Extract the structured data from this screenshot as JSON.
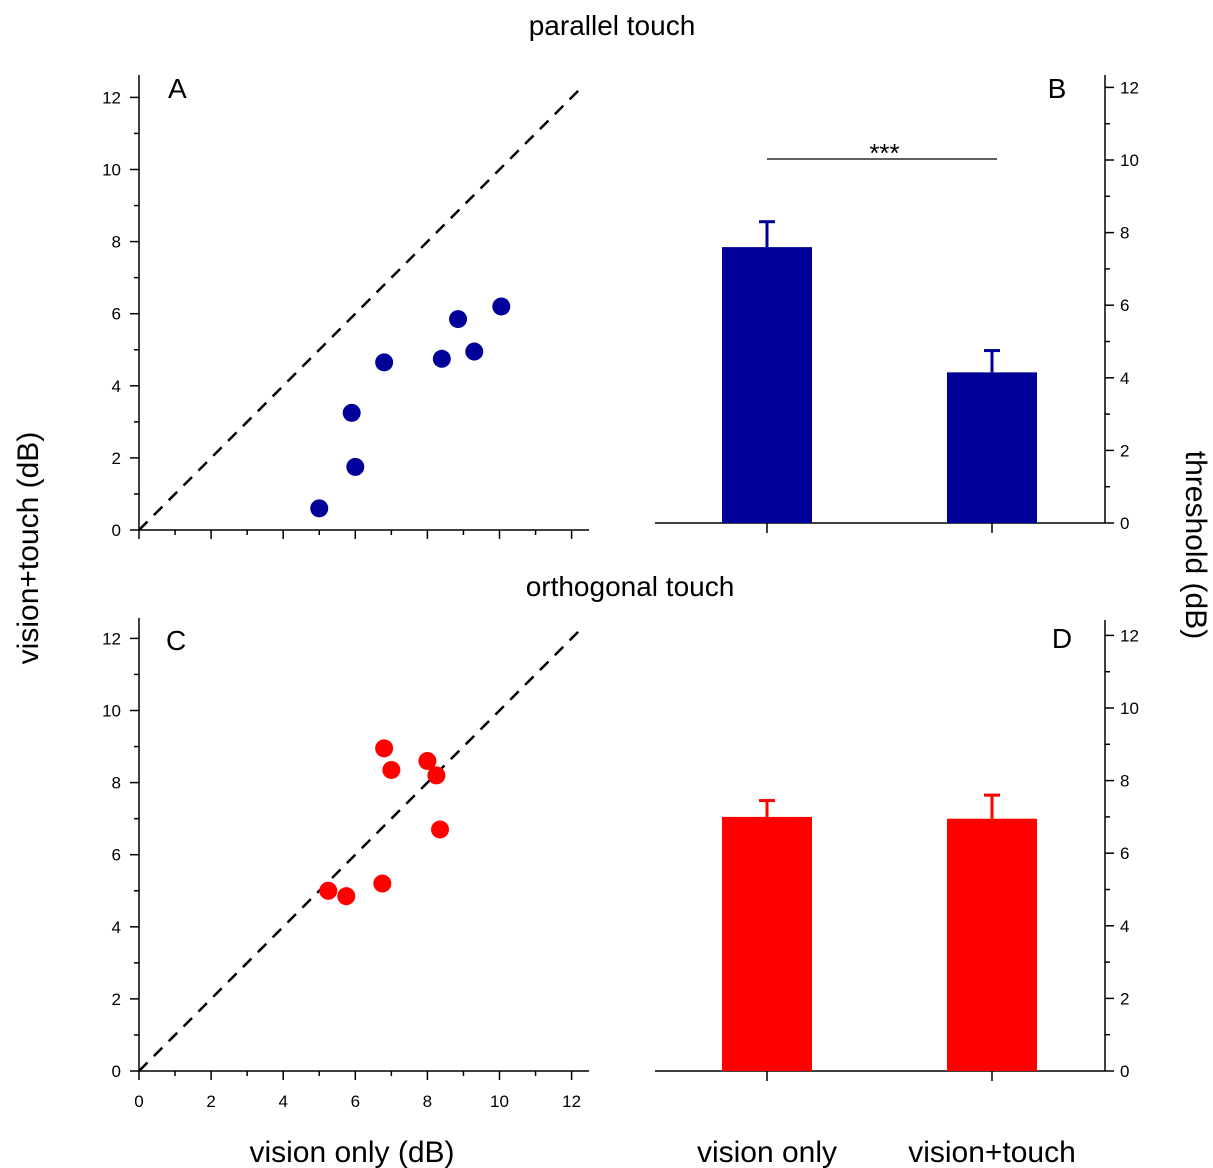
{
  "chart_data": [
    {
      "type": "scatter",
      "panel_letter": "A",
      "section_title": "parallel touch",
      "xlim": [
        0,
        12.5
      ],
      "ylim": [
        0,
        12.5
      ],
      "x_ticks": [
        0,
        2,
        4,
        6,
        8,
        10,
        12
      ],
      "y_ticks": [
        0,
        2,
        4,
        6,
        8,
        10,
        12
      ],
      "show_x_tick_labels": false,
      "color": "#000099",
      "identity_line": true,
      "points": [
        {
          "x": 5.0,
          "y": 0.6
        },
        {
          "x": 5.9,
          "y": 3.25
        },
        {
          "x": 6.0,
          "y": 1.75
        },
        {
          "x": 6.8,
          "y": 4.65
        },
        {
          "x": 8.4,
          "y": 4.75
        },
        {
          "x": 8.85,
          "y": 5.85
        },
        {
          "x": 9.3,
          "y": 4.95
        },
        {
          "x": 10.05,
          "y": 6.2
        }
      ]
    },
    {
      "type": "bar",
      "panel_letter": "B",
      "ylim": [
        0,
        12.5
      ],
      "y_ticks": [
        0,
        2,
        4,
        6,
        8,
        10,
        12
      ],
      "color": "#000099",
      "categories": [
        "vision only",
        "vision+touch"
      ],
      "show_category_labels": false,
      "values": [
        7.6,
        4.15
      ],
      "error_upper": [
        8.3,
        4.75
      ],
      "significance": "***"
    },
    {
      "type": "scatter",
      "panel_letter": "C",
      "section_title": "orthogonal touch",
      "xlim": [
        0,
        12.5
      ],
      "ylim": [
        0,
        12.5
      ],
      "x_ticks": [
        0,
        2,
        4,
        6,
        8,
        10,
        12
      ],
      "y_ticks": [
        0,
        2,
        4,
        6,
        8,
        10,
        12
      ],
      "show_x_tick_labels": true,
      "color": "#ff0000",
      "identity_line": true,
      "points": [
        {
          "x": 5.25,
          "y": 5.0
        },
        {
          "x": 5.75,
          "y": 4.85
        },
        {
          "x": 6.75,
          "y": 5.2
        },
        {
          "x": 6.8,
          "y": 8.95
        },
        {
          "x": 7.0,
          "y": 8.35
        },
        {
          "x": 8.0,
          "y": 8.6
        },
        {
          "x": 8.25,
          "y": 8.2
        },
        {
          "x": 8.35,
          "y": 6.7
        }
      ]
    },
    {
      "type": "bar",
      "panel_letter": "D",
      "ylim": [
        0,
        12.5
      ],
      "y_ticks": [
        0,
        2,
        4,
        6,
        8,
        10,
        12
      ],
      "color": "#ff0000",
      "categories": [
        "vision only",
        "vision+touch"
      ],
      "show_category_labels": true,
      "values": [
        7.0,
        6.95
      ],
      "error_upper": [
        7.45,
        7.6
      ]
    }
  ],
  "labels": {
    "scatter_ylabel": "vision+touch (dB)",
    "scatter_xlabel": "vision only (dB)",
    "bar_ylabel": "threshold (dB)"
  }
}
